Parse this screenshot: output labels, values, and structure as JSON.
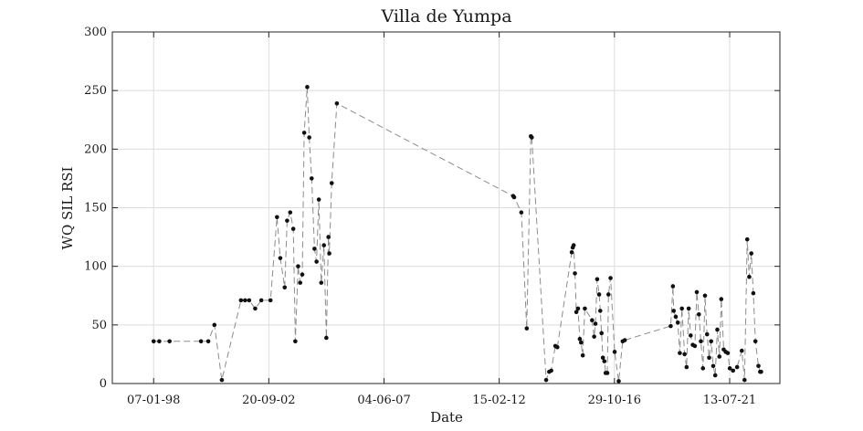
{
  "chart_data": {
    "type": "line",
    "title": "Villa de Yumpa",
    "xlabel": "Date",
    "ylabel": "WQ SIL RSI",
    "xlim": [
      "1996-05-01",
      "2023-08-01"
    ],
    "ylim": [
      0,
      300
    ],
    "x_ticks": [
      "1998-01-07",
      "2002-09-20",
      "2007-06-04",
      "2012-02-15",
      "2016-10-29",
      "2021-07-13"
    ],
    "x_tick_labels": [
      "07-01-98",
      "20-09-02",
      "04-06-07",
      "15-02-12",
      "29-10-16",
      "13-07-21"
    ],
    "y_ticks": [
      0,
      50,
      100,
      150,
      200,
      250,
      300
    ],
    "grid": true,
    "line_style": "dashed",
    "marker": "dot",
    "colors": {
      "line": "#8c8c8c",
      "marker": "#111111",
      "grid": "#dcdcdc",
      "frame": "#262626"
    },
    "series": [
      {
        "points": [
          [
            "1998-01-07",
            36
          ],
          [
            "1998-04-01",
            36
          ],
          [
            "1998-09-01",
            36
          ],
          [
            "1999-12-15",
            36
          ],
          [
            "2000-04-01",
            36
          ],
          [
            "2000-07-01",
            50
          ],
          [
            "2000-10-20",
            3
          ],
          [
            "2001-08-01",
            71
          ],
          [
            "2001-10-01",
            71
          ],
          [
            "2001-12-01",
            71
          ],
          [
            "2002-03-01",
            64
          ],
          [
            "2002-06-01",
            71
          ],
          [
            "2002-10-15",
            71
          ],
          [
            "2003-01-20",
            142
          ],
          [
            "2003-03-10",
            107
          ],
          [
            "2003-05-15",
            82
          ],
          [
            "2003-06-20",
            139
          ],
          [
            "2003-08-05",
            146
          ],
          [
            "2003-09-20",
            132
          ],
          [
            "2003-10-20",
            36
          ],
          [
            "2003-12-01",
            100
          ],
          [
            "2004-01-01",
            86
          ],
          [
            "2004-02-01",
            93
          ],
          [
            "2004-03-01",
            214
          ],
          [
            "2004-04-15",
            253
          ],
          [
            "2004-05-15",
            210
          ],
          [
            "2004-06-20",
            175
          ],
          [
            "2004-08-01",
            115
          ],
          [
            "2004-09-01",
            104
          ],
          [
            "2004-10-05",
            157
          ],
          [
            "2004-11-10",
            86
          ],
          [
            "2004-12-20",
            118
          ],
          [
            "2005-01-25",
            39
          ],
          [
            "2005-02-25",
            125
          ],
          [
            "2005-03-10",
            111
          ],
          [
            "2005-04-15",
            171
          ],
          [
            "2005-07-01",
            239
          ],
          [
            "2012-09-10",
            160
          ],
          [
            "2012-09-25",
            159
          ],
          [
            "2013-01-10",
            146
          ],
          [
            "2013-04-01",
            47
          ],
          [
            "2013-06-01",
            211
          ],
          [
            "2013-06-15",
            210
          ],
          [
            "2014-01-15",
            3
          ],
          [
            "2014-03-01",
            10
          ],
          [
            "2014-04-01",
            11
          ],
          [
            "2014-06-01",
            32
          ],
          [
            "2014-07-01",
            31
          ],
          [
            "2015-02-01",
            112
          ],
          [
            "2015-02-15",
            116
          ],
          [
            "2015-03-01",
            118
          ],
          [
            "2015-03-20",
            94
          ],
          [
            "2015-04-10",
            61
          ],
          [
            "2015-05-05",
            64
          ],
          [
            "2015-06-01",
            38
          ],
          [
            "2015-06-20",
            35
          ],
          [
            "2015-07-15",
            24
          ],
          [
            "2015-08-15",
            64
          ],
          [
            "2015-12-01",
            54
          ],
          [
            "2016-01-01",
            40
          ],
          [
            "2016-01-20",
            51
          ],
          [
            "2016-02-15",
            89
          ],
          [
            "2016-03-15",
            76
          ],
          [
            "2016-04-01",
            62
          ],
          [
            "2016-04-20",
            43
          ],
          [
            "2016-05-10",
            22
          ],
          [
            "2016-06-01",
            19
          ],
          [
            "2016-06-20",
            9
          ],
          [
            "2016-07-15",
            9
          ],
          [
            "2016-08-01",
            76
          ],
          [
            "2016-09-01",
            90
          ],
          [
            "2016-11-01",
            27
          ],
          [
            "2017-01-01",
            2
          ],
          [
            "2017-03-01",
            36
          ],
          [
            "2017-04-01",
            37
          ],
          [
            "2019-02-15",
            49
          ],
          [
            "2019-03-20",
            83
          ],
          [
            "2019-04-01",
            62
          ],
          [
            "2019-05-01",
            57
          ],
          [
            "2019-06-01",
            52
          ],
          [
            "2019-07-01",
            26
          ],
          [
            "2019-08-01",
            64
          ],
          [
            "2019-09-10",
            25
          ],
          [
            "2019-10-10",
            14
          ],
          [
            "2019-11-10",
            64
          ],
          [
            "2019-12-10",
            41
          ],
          [
            "2020-01-10",
            33
          ],
          [
            "2020-02-10",
            32
          ],
          [
            "2020-03-10",
            78
          ],
          [
            "2020-04-10",
            59
          ],
          [
            "2020-05-10",
            36
          ],
          [
            "2020-06-10",
            13
          ],
          [
            "2020-07-10",
            75
          ],
          [
            "2020-08-10",
            42
          ],
          [
            "2020-09-10",
            22
          ],
          [
            "2020-10-10",
            36
          ],
          [
            "2020-11-10",
            15
          ],
          [
            "2020-12-10",
            7
          ],
          [
            "2021-01-10",
            46
          ],
          [
            "2021-02-10",
            23
          ],
          [
            "2021-03-10",
            72
          ],
          [
            "2021-04-15",
            29
          ],
          [
            "2021-05-15",
            27
          ],
          [
            "2021-06-15",
            26
          ],
          [
            "2021-07-15",
            13
          ],
          [
            "2021-09-01",
            11
          ],
          [
            "2021-11-01",
            14
          ],
          [
            "2022-01-10",
            28
          ],
          [
            "2022-02-20",
            3
          ],
          [
            "2022-04-01",
            123
          ],
          [
            "2022-05-01",
            91
          ],
          [
            "2022-06-01",
            111
          ],
          [
            "2022-07-01",
            77
          ],
          [
            "2022-08-01",
            36
          ],
          [
            "2022-09-15",
            15
          ],
          [
            "2022-10-10",
            10
          ],
          [
            "2022-10-25",
            10
          ]
        ]
      }
    ]
  }
}
